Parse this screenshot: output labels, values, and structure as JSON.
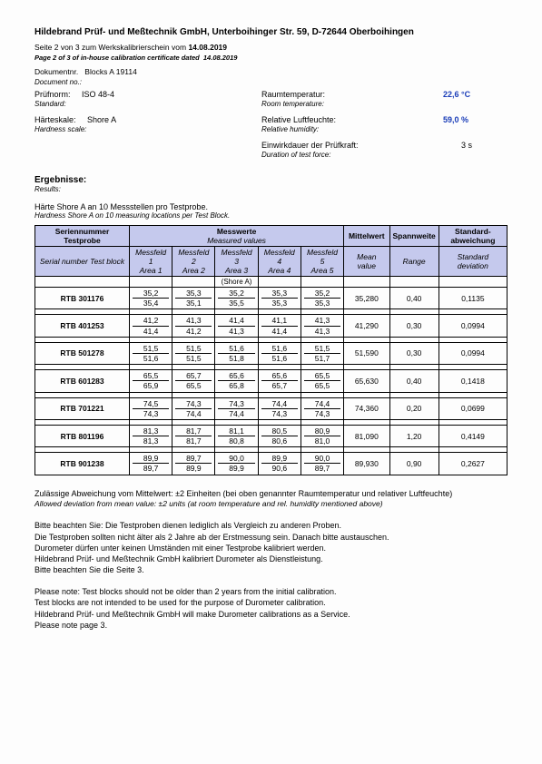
{
  "company": "Hildebrand Prüf- und Meßtechnik GmbH, Unterboihinger Str. 59, D-72644 Oberboihingen",
  "pageLineDe": "Seite 2 von 3 zum Werkskalibrierschein vom",
  "pageLineEn": "Page 2 of 3 of in-house calibration certificate dated",
  "date": "14.08.2019",
  "docnrDe": "Dokumentnr.",
  "docnrEn": "Document no.:",
  "docnrVal": "Blocks A 19114",
  "pruefnormDe": "Prüfnorm:",
  "pruefnormEn": "Standard:",
  "pruefnormVal": "ISO 48-4",
  "raumTempDe": "Raumtemperatur:",
  "raumTempEn": "Room temperature:",
  "raumTempVal": "22,6 °C",
  "hardScaleDe": "Härteskale:",
  "hardScaleEn": "Hardness scale:",
  "hardScaleVal": "Shore A",
  "relHumDe": "Relative Luftfeuchte:",
  "relHumEn": "Relative humidity:",
  "relHumVal": "59,0 %",
  "durDe": "Einwirkdauer der Prüfkraft:",
  "durEn": "Duration of test force:",
  "durVal": "3 s",
  "resultsDe": "Ergebnisse:",
  "resultsEn": "Results:",
  "subtitleDe": "Härte Shore A an 10 Messstellen pro Testprobe.",
  "subtitleEn": "Hardness Shore A on 10 measuring locations per Test Block.",
  "hdr": {
    "serialDe": "Seriennummer Testprobe",
    "serialEn": "Serial number Test block",
    "messwerteDe": "Messwerte",
    "messwerteEn": "Measured values",
    "mf1De": "Messfeld 1",
    "mf1En": "Area 1",
    "mf2De": "Messfeld 2",
    "mf2En": "Area 2",
    "mf3De": "Messfeld 3",
    "mf3En": "Area 3",
    "mf4De": "Messfeld 4",
    "mf4En": "Area 4",
    "mf5De": "Messfeld 5",
    "mf5En": "Area 5",
    "meanDe": "Mittelwert",
    "meanEn": "Mean value",
    "rangeDe": "Spannweite",
    "rangeEn": "Range",
    "stdDe": "Standard­abweichung",
    "stdEn": "Standard deviation",
    "shoreA": "(Shore A)"
  },
  "rows": [
    {
      "s": "RTB 301176",
      "a": [
        "35,2",
        "35,4"
      ],
      "b": [
        "35,3",
        "35,1"
      ],
      "c": [
        "35,2",
        "35,5"
      ],
      "d": [
        "35,3",
        "35,3"
      ],
      "e": [
        "35,2",
        "35,3"
      ],
      "mean": "35,280",
      "range": "0,40",
      "std": "0,1135"
    },
    {
      "s": "RTB 401253",
      "a": [
        "41,2",
        "41,4"
      ],
      "b": [
        "41,3",
        "41,2"
      ],
      "c": [
        "41,4",
        "41,3"
      ],
      "d": [
        "41,1",
        "41,4"
      ],
      "e": [
        "41,3",
        "41,3"
      ],
      "mean": "41,290",
      "range": "0,30",
      "std": "0,0994"
    },
    {
      "s": "RTB 501278",
      "a": [
        "51,5",
        "51,6"
      ],
      "b": [
        "51,5",
        "51,5"
      ],
      "c": [
        "51,6",
        "51,8"
      ],
      "d": [
        "51,6",
        "51,6"
      ],
      "e": [
        "51,5",
        "51,7"
      ],
      "mean": "51,590",
      "range": "0,30",
      "std": "0,0994"
    },
    {
      "s": "RTB 601283",
      "a": [
        "65,5",
        "65,9"
      ],
      "b": [
        "65,7",
        "65,5"
      ],
      "c": [
        "65,6",
        "65,8"
      ],
      "d": [
        "65,6",
        "65,7"
      ],
      "e": [
        "65,5",
        "65,5"
      ],
      "mean": "65,630",
      "range": "0,40",
      "std": "0,1418"
    },
    {
      "s": "RTB 701221",
      "a": [
        "74,5",
        "74,3"
      ],
      "b": [
        "74,3",
        "74,4"
      ],
      "c": [
        "74,3",
        "74,4"
      ],
      "d": [
        "74,4",
        "74,3"
      ],
      "e": [
        "74,4",
        "74,3"
      ],
      "mean": "74,360",
      "range": "0,20",
      "std": "0,0699"
    },
    {
      "s": "RTB 801196",
      "a": [
        "81,3",
        "81,3"
      ],
      "b": [
        "81,7",
        "81,7"
      ],
      "c": [
        "81,1",
        "80,8"
      ],
      "d": [
        "80,5",
        "80,6"
      ],
      "e": [
        "80,9",
        "81,0"
      ],
      "mean": "81,090",
      "range": "1,20",
      "std": "0,4149"
    },
    {
      "s": "RTB 901238",
      "a": [
        "89,9",
        "89,7"
      ],
      "b": [
        "89,7",
        "89,9"
      ],
      "c": [
        "90,0",
        "89,9"
      ],
      "d": [
        "89,9",
        "90,6"
      ],
      "e": [
        "90,0",
        "89,7"
      ],
      "mean": "89,930",
      "range": "0,90",
      "std": "0,2627"
    }
  ],
  "devDe": "Zulässige Abweichung vom Mittelwert: ±2 Einheiten (bei oben genannter Raumtemperatur und relativer Luftfeuchte)",
  "devEn": "Allowed deviation from mean value: ±2 units  (at room temperature and rel. humidity mentioned above)",
  "noteDe1": "Bitte beachten Sie: Die Testproben dienen lediglich als Vergleich zu anderen Proben.",
  "noteDe2": "Die Testproben sollten nicht älter als 2 Jahre ab der Erstmessung sein. Danach bitte austauschen.",
  "noteDe3": "Durometer dürfen unter keinen Umständen mit einer Testprobe kalibriert werden.",
  "noteDe4": "Hildebrand Prüf- und Meßtechnik GmbH kalibriert Durometer als Dienstleistung.",
  "noteDe5": "Bitte beachten Sie die Seite 3.",
  "noteEn1": "Please note: Test blocks should not be older than 2 years from the initial calibration.",
  "noteEn2": "Test blocks are not intended to be used for the purpose of Durometer calibration.",
  "noteEn3": "Hildebrand Prüf- und Meßtechnik GmbH will make Durometer calibrations as a Service.",
  "noteEn4": "Please note page 3."
}
